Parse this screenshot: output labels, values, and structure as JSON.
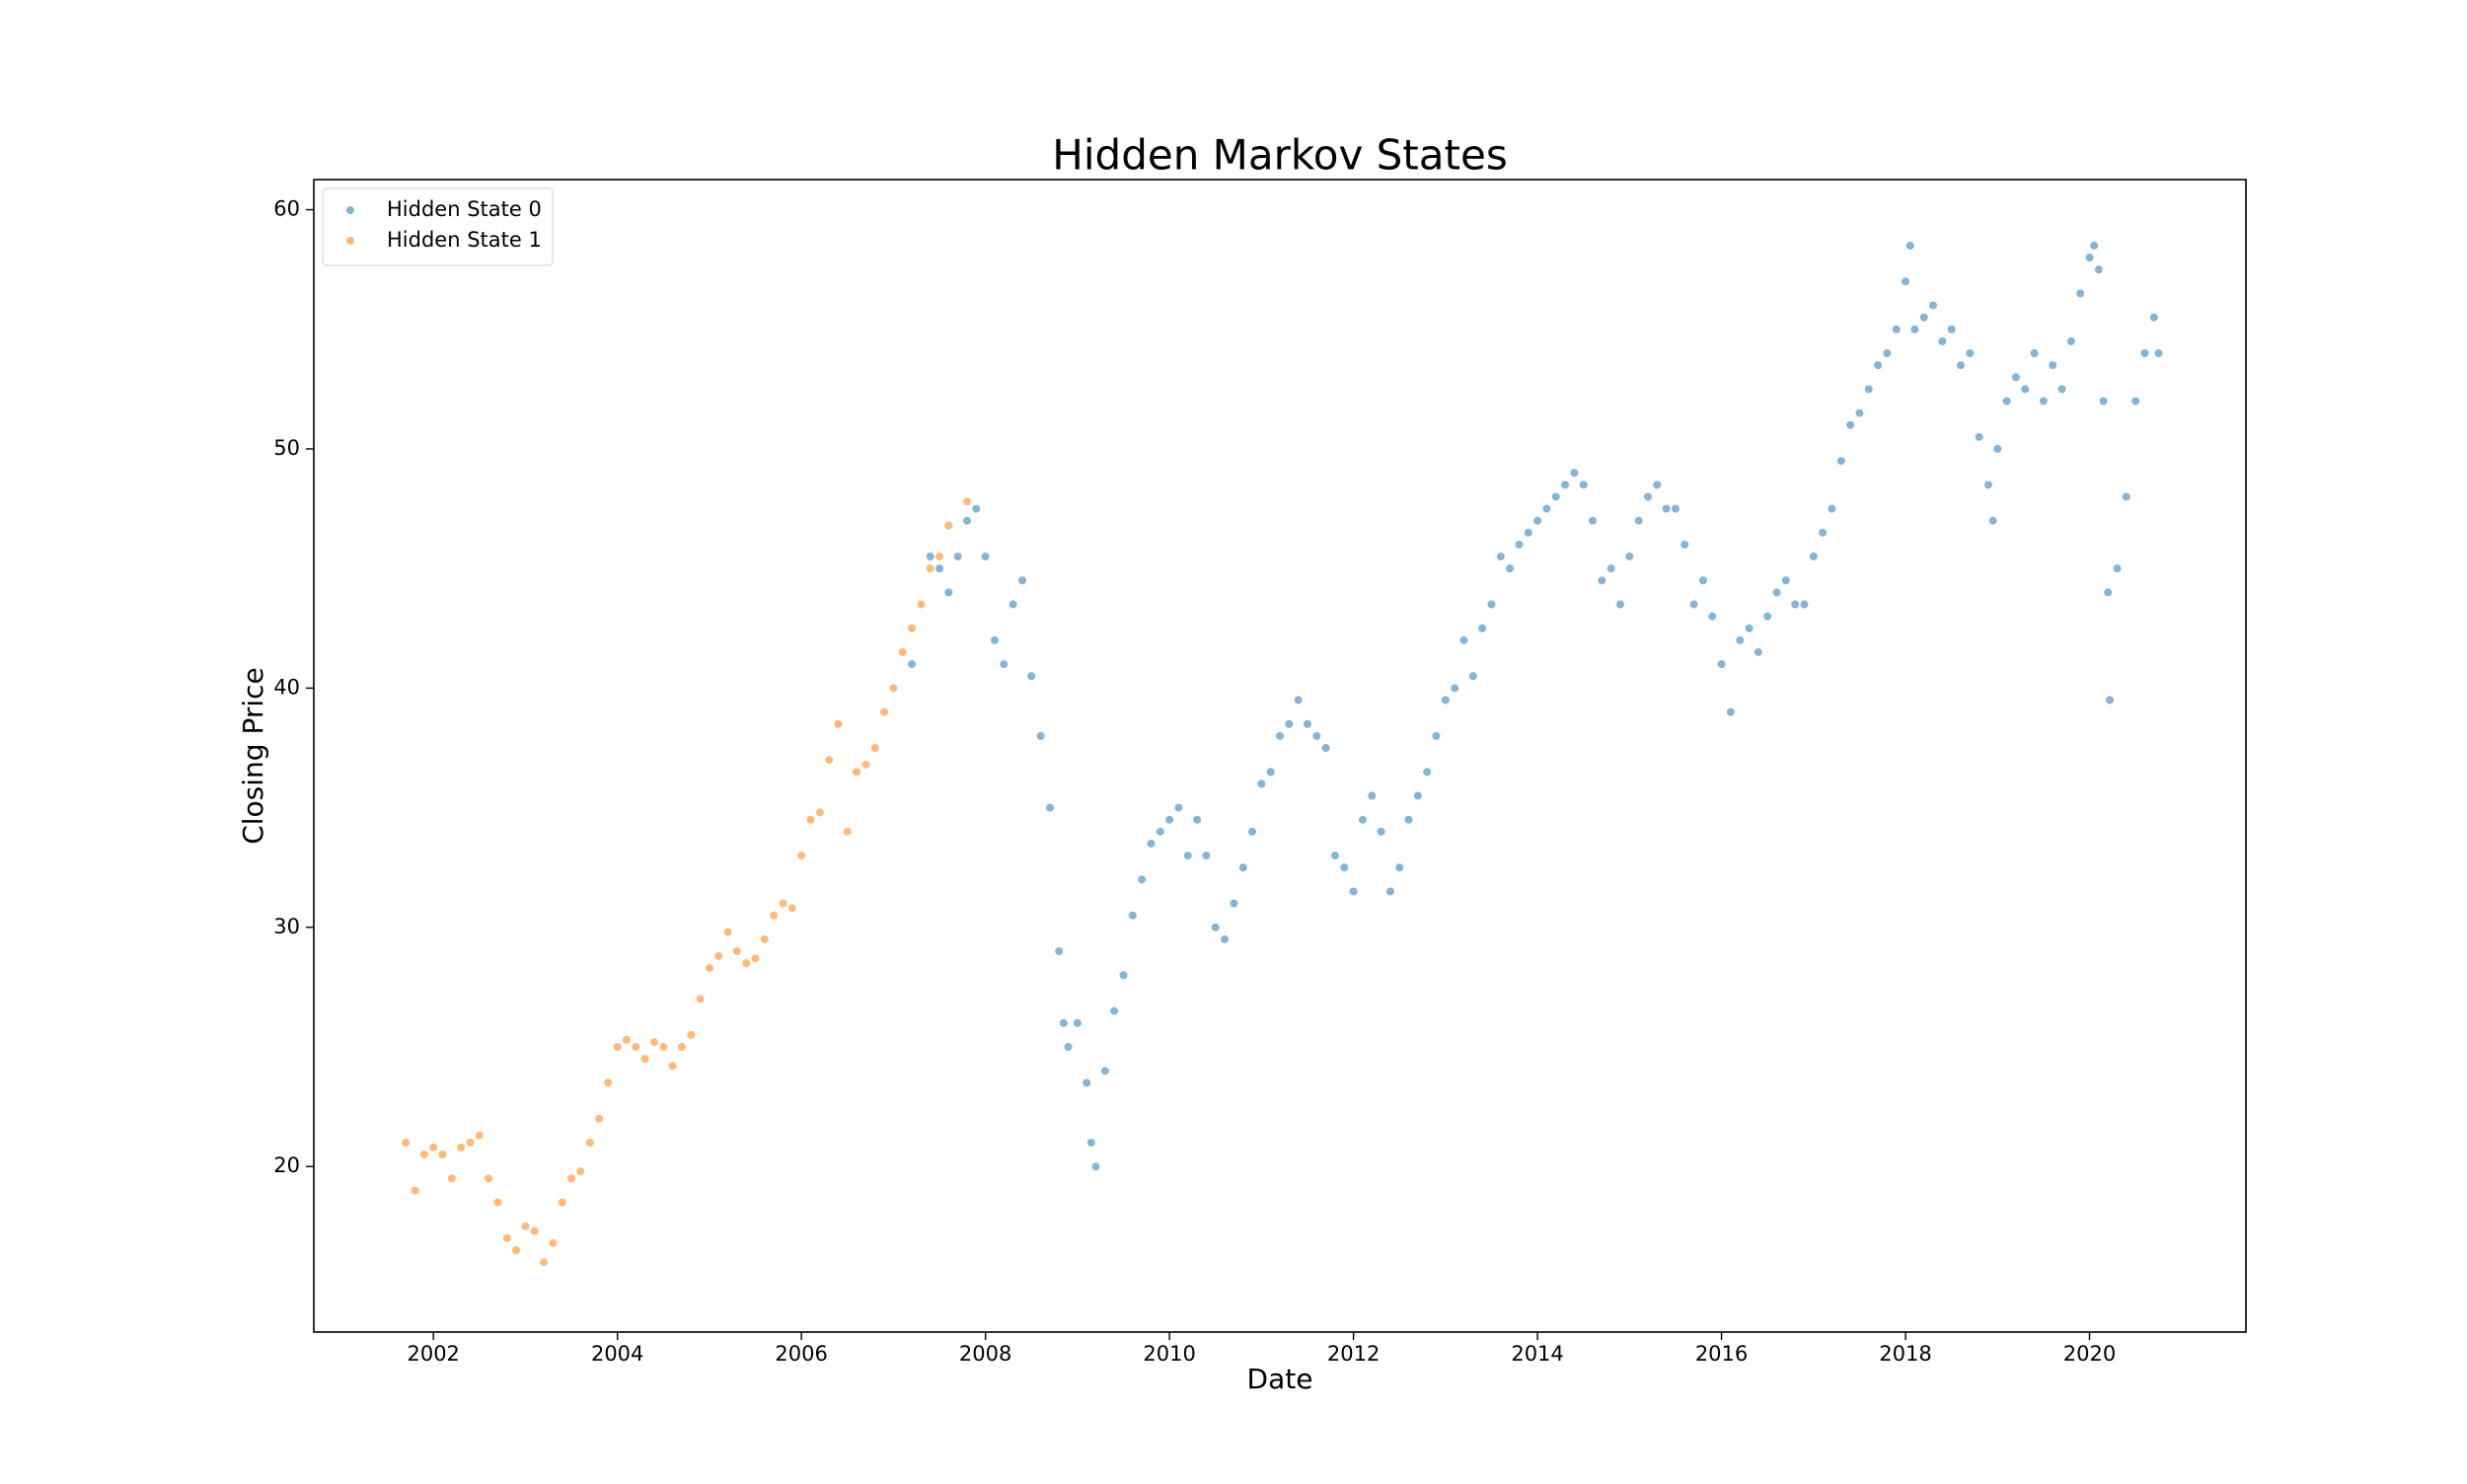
{
  "chart_data": {
    "type": "scatter",
    "title": "Hidden Markov States",
    "xlabel": "Date",
    "ylabel": "Closing Price",
    "xlim": [
      2000.7,
      2021.7
    ],
    "xticks": [
      2002,
      2004,
      2006,
      2008,
      2010,
      2012,
      2014,
      2016,
      2018,
      2020
    ],
    "ylim": [
      13.08,
      61.26
    ],
    "yticks": [
      20,
      30,
      40,
      50,
      60
    ],
    "legend": "upper left",
    "grid": false,
    "series": [
      {
        "name": "Hidden State 0",
        "color": "#1f77b4",
        "x": [
          2007.2,
          2007.4,
          2007.5,
          2007.6,
          2007.7,
          2007.8,
          2007.9,
          2008.0,
          2008.1,
          2008.2,
          2008.3,
          2008.4,
          2008.5,
          2008.6,
          2008.7,
          2008.8,
          2008.85,
          2008.9,
          2009.0,
          2009.1,
          2009.15,
          2009.2,
          2009.3,
          2009.4,
          2009.5,
          2009.6,
          2009.7,
          2009.8,
          2009.9,
          2010.0,
          2010.1,
          2010.2,
          2010.3,
          2010.4,
          2010.5,
          2010.6,
          2010.7,
          2010.8,
          2010.9,
          2011.0,
          2011.1,
          2011.2,
          2011.3,
          2011.4,
          2011.5,
          2011.6,
          2011.7,
          2011.8,
          2011.9,
          2012.0,
          2012.1,
          2012.2,
          2012.3,
          2012.4,
          2012.5,
          2012.6,
          2012.7,
          2012.8,
          2012.9,
          2013.0,
          2013.1,
          2013.2,
          2013.3,
          2013.4,
          2013.5,
          2013.6,
          2013.7,
          2013.8,
          2013.9,
          2014.0,
          2014.1,
          2014.2,
          2014.3,
          2014.4,
          2014.5,
          2014.6,
          2014.7,
          2014.8,
          2014.9,
          2015.0,
          2015.1,
          2015.2,
          2015.3,
          2015.4,
          2015.5,
          2015.6,
          2015.7,
          2015.8,
          2015.9,
          2016.0,
          2016.1,
          2016.2,
          2016.3,
          2016.4,
          2016.5,
          2016.6,
          2016.7,
          2016.8,
          2016.9,
          2017.0,
          2017.1,
          2017.2,
          2017.3,
          2017.4,
          2017.5,
          2017.6,
          2017.7,
          2017.8,
          2017.9,
          2018.0,
          2018.05,
          2018.1,
          2018.2,
          2018.3,
          2018.4,
          2018.5,
          2018.6,
          2018.7,
          2018.8,
          2018.9,
          2018.95,
          2019.0,
          2019.1,
          2019.2,
          2019.3,
          2019.4,
          2019.5,
          2019.6,
          2019.7,
          2019.8,
          2019.9,
          2020.0,
          2020.05,
          2020.1,
          2020.15,
          2020.2,
          2020.22,
          2020.3,
          2020.4,
          2020.5,
          2020.6,
          2020.7,
          2020.75
        ],
        "values": [
          41,
          45.5,
          45,
          44,
          45.5,
          47,
          47.5,
          45.5,
          42,
          41,
          43.5,
          44.5,
          40.5,
          38,
          35,
          29,
          26,
          25,
          26,
          23.5,
          21,
          20,
          24,
          26.5,
          28,
          30.5,
          32,
          33.5,
          34,
          34.5,
          35,
          33,
          34.5,
          33,
          30,
          29.5,
          31,
          32.5,
          34,
          36,
          36.5,
          38,
          38.5,
          39.5,
          38.5,
          38,
          37.5,
          33,
          32.5,
          31.5,
          34.5,
          35.5,
          34,
          31.5,
          32.5,
          34.5,
          35.5,
          36.5,
          38,
          39.5,
          40,
          42,
          40.5,
          42.5,
          43.5,
          45.5,
          45,
          46,
          46.5,
          47,
          47.5,
          48,
          48.5,
          49,
          48.5,
          47,
          44.5,
          45,
          43.5,
          45.5,
          47,
          48,
          48.5,
          47.5,
          47.5,
          46,
          43.5,
          44.5,
          43,
          41,
          39,
          42,
          42.5,
          41.5,
          43,
          44,
          44.5,
          43.5,
          43.5,
          45.5,
          46.5,
          47.5,
          49.5,
          51,
          51.5,
          52.5,
          53.5,
          54,
          55,
          57,
          58.5,
          55,
          55.5,
          56,
          54.5,
          55,
          53.5,
          54,
          50.5,
          48.5,
          47,
          50,
          52,
          53,
          52.5,
          54,
          52,
          53.5,
          52.5,
          54.5,
          56.5,
          58,
          58.5,
          57.5,
          52,
          44,
          39.5,
          45,
          48,
          52,
          54,
          55.5,
          54
        ]
      },
      {
        "name": "Hidden State 1",
        "color": "#ff7f0e",
        "x": [
          2001.7,
          2001.8,
          2001.9,
          2002.0,
          2002.1,
          2002.2,
          2002.3,
          2002.4,
          2002.5,
          2002.6,
          2002.7,
          2002.8,
          2002.9,
          2003.0,
          2003.1,
          2003.2,
          2003.3,
          2003.4,
          2003.5,
          2003.6,
          2003.7,
          2003.8,
          2003.9,
          2004.0,
          2004.1,
          2004.2,
          2004.3,
          2004.4,
          2004.5,
          2004.6,
          2004.7,
          2004.8,
          2004.9,
          2005.0,
          2005.1,
          2005.2,
          2005.3,
          2005.4,
          2005.5,
          2005.6,
          2005.7,
          2005.8,
          2005.9,
          2006.0,
          2006.1,
          2006.2,
          2006.3,
          2006.4,
          2006.5,
          2006.6,
          2006.7,
          2006.8,
          2006.9,
          2007.0,
          2007.1,
          2007.2,
          2007.3,
          2007.4,
          2007.5,
          2007.6,
          2007.8
        ],
        "values": [
          21,
          19,
          20.5,
          20.8,
          20.5,
          19.5,
          20.8,
          21,
          21.3,
          19.5,
          18.5,
          17,
          16.5,
          17.5,
          17.3,
          16,
          16.8,
          18.5,
          19.5,
          19.8,
          21,
          22,
          23.5,
          25,
          25.3,
          25,
          24.5,
          25.2,
          25,
          24.2,
          25,
          25.5,
          27,
          28.3,
          28.8,
          29.8,
          29,
          28.5,
          28.7,
          29.5,
          30.5,
          31,
          30.8,
          33,
          34.5,
          34.8,
          37,
          38.5,
          34,
          36.5,
          36.8,
          37.5,
          39,
          40,
          41.5,
          42.5,
          43.5,
          45,
          45.5,
          46.8,
          47.8
        ]
      }
    ]
  }
}
